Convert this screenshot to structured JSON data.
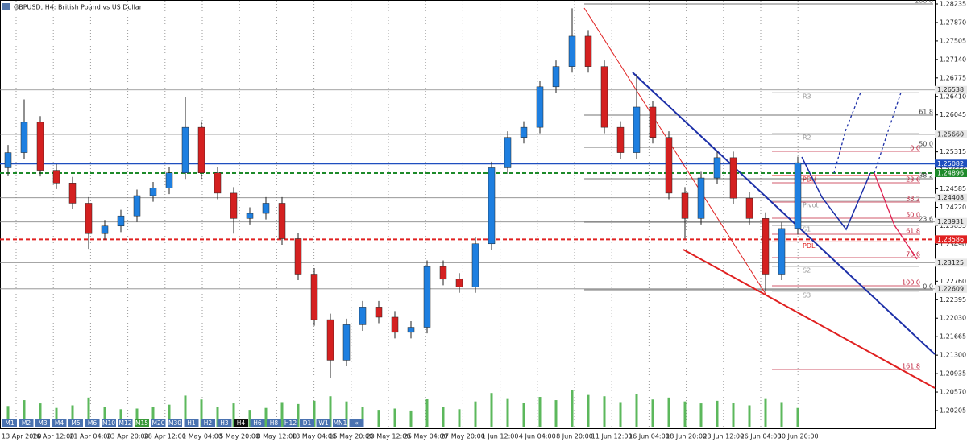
{
  "chart_data": {
    "type": "candlestick",
    "title": "GBPUSD, H4: British Pound vs US Dollar",
    "ylim": [
      1.20205,
      1.28235
    ],
    "yticks": [
      {
        "value": 1.28235,
        "label": "1.28235"
      },
      {
        "value": 1.2787,
        "label": "1.27870"
      },
      {
        "value": 1.27505,
        "label": "1.27505"
      },
      {
        "value": 1.2714,
        "label": "1.27140"
      },
      {
        "value": 1.26775,
        "label": "1.26775"
      },
      {
        "value": 1.2641,
        "label": "1.26410"
      },
      {
        "value": 1.26045,
        "label": "1.26045"
      },
      {
        "value": 1.2568,
        "label": "1.25680"
      },
      {
        "value": 1.25315,
        "label": "1.25315"
      },
      {
        "value": 1.2495,
        "label": "1.24950"
      },
      {
        "value": 1.24585,
        "label": "1.24585"
      },
      {
        "value": 1.2422,
        "label": "1.24220"
      },
      {
        "value": 1.23855,
        "label": "1.23855"
      },
      {
        "value": 1.2349,
        "label": "1.23490"
      },
      {
        "value": 1.23125,
        "label": "1.23125"
      },
      {
        "value": 1.2276,
        "label": "1.22760"
      },
      {
        "value": 1.22395,
        "label": "1.22395"
      },
      {
        "value": 1.2203,
        "label": "1.22030"
      },
      {
        "value": 1.21665,
        "label": "1.21665"
      },
      {
        "value": 1.213,
        "label": "1.21300"
      },
      {
        "value": 1.20935,
        "label": "1.20935"
      },
      {
        "value": 1.2057,
        "label": "1.20570"
      },
      {
        "value": 1.20205,
        "label": "1.20205"
      }
    ],
    "x_labels": [
      "13 Apr 2020",
      "16 Apr 12:00",
      "21 Apr 04:00",
      "23 Apr 20:00",
      "28 Apr 12:00",
      "1 May 04:00",
      "5 May 20:00",
      "8 May 12:00",
      "13 May 04:00",
      "15 May 20:00",
      "20 May 12:00",
      "25 May 04:00",
      "27 May 20:00",
      "1 Jun 12:00",
      "4 Jun 04:00",
      "8 Jun 20:00",
      "11 Jun 12:00",
      "16 Jun 04:00",
      "18 Jun 20:00",
      "23 Jun 12:00",
      "26 Jun 04:00",
      "30 Jun 20:00"
    ],
    "colors": {
      "up": "#1e7fe0",
      "down": "#d42020",
      "volume": "#5cb85c"
    },
    "open": [
      1.25,
      1.253,
      1.259,
      1.2495,
      1.247,
      1.243,
      1.237,
      1.2385,
      1.2405,
      1.2445,
      1.246,
      1.249,
      1.258,
      1.249,
      1.245,
      1.24,
      1.241,
      1.243,
      1.236,
      1.229,
      1.22,
      1.212,
      1.219,
      1.2225,
      1.2205,
      1.2175,
      1.2185,
      1.2305,
      1.228,
      1.2265,
      1.235,
      1.25,
      1.256,
      1.258,
      1.266,
      1.27,
      1.276,
      1.27,
      1.258,
      1.253,
      1.262,
      1.256,
      1.245,
      1.24,
      1.248,
      1.252,
      1.244,
      1.24,
      1.229,
      1.238
    ],
    "high": [
      1.2545,
      1.2635,
      1.2602,
      1.2507,
      1.2482,
      1.2442,
      1.2397,
      1.2417,
      1.2457,
      1.2472,
      1.2502,
      1.264,
      1.2592,
      1.2502,
      1.2462,
      1.2422,
      1.2442,
      1.2442,
      1.2372,
      1.2302,
      1.2212,
      1.2202,
      1.2237,
      1.2237,
      1.2217,
      1.2197,
      1.2317,
      1.2317,
      1.2292,
      1.2362,
      1.2512,
      1.2572,
      1.2592,
      1.2672,
      1.2712,
      1.2815,
      1.2772,
      1.2712,
      1.2592,
      1.2685,
      1.2632,
      1.2572,
      1.2462,
      1.2492,
      1.2532,
      1.2532,
      1.2452,
      1.2412,
      1.2392,
      1.2522
    ],
    "low": [
      1.2485,
      1.2518,
      1.2483,
      1.2458,
      1.2418,
      1.234,
      1.2358,
      1.2373,
      1.2393,
      1.2433,
      1.2448,
      1.2478,
      1.2478,
      1.2438,
      1.237,
      1.2388,
      1.2398,
      1.2348,
      1.2278,
      1.2188,
      1.2085,
      1.2108,
      1.2178,
      1.2193,
      1.2163,
      1.2163,
      1.2173,
      1.2268,
      1.2253,
      1.2253,
      1.2338,
      1.2488,
      1.2548,
      1.2568,
      1.2648,
      1.2688,
      1.2688,
      1.2568,
      1.2518,
      1.2518,
      1.2548,
      1.2438,
      1.236,
      1.2388,
      1.2468,
      1.2428,
      1.2388,
      1.2255,
      1.2278,
      1.2368
    ],
    "close": [
      1.253,
      1.259,
      1.2495,
      1.247,
      1.243,
      1.237,
      1.2385,
      1.2405,
      1.2445,
      1.246,
      1.249,
      1.258,
      1.249,
      1.245,
      1.24,
      1.241,
      1.243,
      1.236,
      1.229,
      1.22,
      1.212,
      1.219,
      1.2225,
      1.2205,
      1.2175,
      1.2185,
      1.2305,
      1.228,
      1.2265,
      1.235,
      1.25,
      1.256,
      1.258,
      1.266,
      1.27,
      1.276,
      1.27,
      1.258,
      1.253,
      1.262,
      1.256,
      1.245,
      1.24,
      1.248,
      1.252,
      1.244,
      1.24,
      1.229,
      1.238,
      1.251
    ],
    "volume": [
      3200,
      4100,
      3600,
      2900,
      3300,
      4500,
      3100,
      2700,
      2800,
      3000,
      3400,
      4800,
      4200,
      3100,
      3600,
      2600,
      2900,
      3800,
      3500,
      4000,
      4700,
      3900,
      3000,
      2600,
      2800,
      2500,
      4300,
      3100,
      2700,
      3900,
      5200,
      4400,
      3700,
      4600,
      4100,
      5600,
      4900,
      4700,
      3800,
      5000,
      4200,
      4500,
      3900,
      3600,
      4000,
      3700,
      3300,
      4400,
      3800,
      2900
    ],
    "price_tags": [
      {
        "value": 1.26538,
        "label": "1.26538",
        "color": "#e8e8e8"
      },
      {
        "value": 1.2566,
        "label": "1.25660",
        "color": "#e8e8e8"
      },
      {
        "value": 1.25082,
        "label": "1.25082",
        "color": "#1f4fbf"
      },
      {
        "value": 1.24896,
        "label": "1.24896",
        "color": "#1d8a2a"
      },
      {
        "value": 1.24408,
        "label": "1.24408",
        "color": "#e8e8e8"
      },
      {
        "value": 1.23931,
        "label": "1.23931",
        "color": "#e8e8e8"
      },
      {
        "value": 1.23586,
        "label": "1.23586",
        "color": "#e02020"
      },
      {
        "value": 1.23125,
        "label": "1.23125",
        "color": "#e8e8e8"
      },
      {
        "value": 1.22609,
        "label": "1.22609",
        "color": "#e8e8e8"
      }
    ],
    "pivots": [
      {
        "label": "R3",
        "value": 1.26485
      },
      {
        "label": "R2",
        "value": 1.25675
      },
      {
        "label": "PDH",
        "value": 1.2485
      },
      {
        "label": "Pivot",
        "value": 1.2434
      },
      {
        "label": "S1",
        "value": 1.2386
      },
      {
        "label": "PDL",
        "value": 1.2354
      },
      {
        "label": "S2",
        "value": 1.2305
      },
      {
        "label": "S3",
        "value": 1.2256
      }
    ],
    "fib_black": [
      {
        "value": 100,
        "label": "100.0",
        "price": 1.28235
      },
      {
        "value": 61.8,
        "label": "61.8",
        "price": 1.26041
      },
      {
        "value": 50,
        "label": "50.0",
        "price": 1.25405
      },
      {
        "value": 38.2,
        "label": "38.2",
        "price": 1.24785
      },
      {
        "value": 23.6,
        "label": "23.6",
        "price": 1.23926
      },
      {
        "value": 0,
        "label": "0.0",
        "price": 1.2259
      }
    ],
    "fib_red": [
      {
        "value": 0,
        "label": "0.0",
        "price": 1.25325
      },
      {
        "value": 23.6,
        "label": "23.6",
        "price": 1.24705
      },
      {
        "value": 38.2,
        "label": "38.2",
        "price": 1.24323
      },
      {
        "value": 50,
        "label": "50.0",
        "price": 1.24005
      },
      {
        "value": 61.8,
        "label": "61.8",
        "price": 1.23687
      },
      {
        "value": 78.6,
        "label": "78.6",
        "price": 1.23226
      },
      {
        "value": 100,
        "label": "100.0",
        "price": 1.2267
      },
      {
        "value": 161.8,
        "label": "161.8",
        "price": 1.21016
      }
    ],
    "timeframes": [
      "M1",
      "M2",
      "M3",
      "M4",
      "M5",
      "M6",
      "M10",
      "M12",
      "M15",
      "M20",
      "M30",
      "H1",
      "H2",
      "H3",
      "H4",
      "H6",
      "H8",
      "H12",
      "D1",
      "W1",
      "MN1",
      "«"
    ],
    "active_timeframe": "H4",
    "highlight_timeframe": "M15"
  }
}
